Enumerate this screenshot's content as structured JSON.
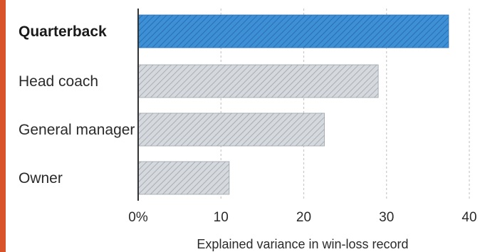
{
  "colors": {
    "accent_strip": "#d9532a",
    "highlight_fill": "#3d8fd6",
    "highlight_hatch": "#2a6fb0",
    "default_fill": "#d5d9dd",
    "default_hatch": "#9aa3ab",
    "grid": "#c8c8c8",
    "axis": "#333333"
  },
  "chart_data": {
    "type": "bar",
    "orientation": "horizontal",
    "categories": [
      "Quarterback",
      "Head coach",
      "General manager",
      "Owner"
    ],
    "values": [
      37.5,
      29,
      22.5,
      11
    ],
    "highlight": [
      "Quarterback"
    ],
    "xlim": [
      0,
      40
    ],
    "x_ticks": [
      "0%",
      "10",
      "20",
      "30",
      "40"
    ],
    "x_tick_values": [
      0,
      10,
      20,
      30,
      40
    ],
    "xlabel": "Explained variance in win-loss record",
    "ylabel": "",
    "title": "",
    "grid": "vertical-dashed",
    "legend": "none"
  }
}
